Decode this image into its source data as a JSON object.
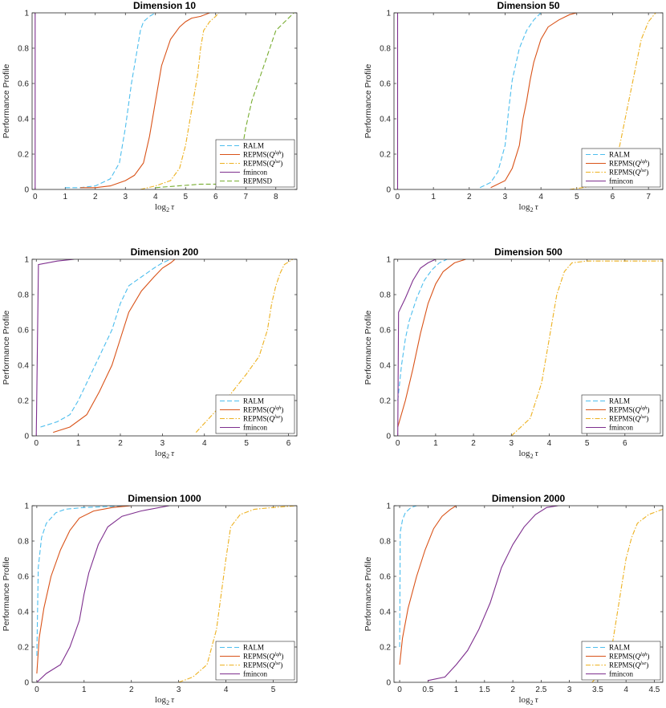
{
  "figure": {
    "ylabel": "Performance Profile",
    "xlabel_base": "log",
    "xlabel_sub": "2",
    "xlabel_var": "τ"
  },
  "series_styles": {
    "RALM": {
      "color": "#4DBEEE",
      "dash": "6,3"
    },
    "REPMS(Qlqh)": {
      "color": "#D95319",
      "dash": ""
    },
    "REPMS(Qlse)": {
      "color": "#EDB120",
      "dash": "6,2,1.5,2"
    },
    "fmincon": {
      "color": "#7E2F8E",
      "dash": ""
    },
    "REPMSD": {
      "color": "#77AC30",
      "dash": "6,3"
    }
  },
  "chart_data": [
    {
      "type": "line",
      "title": "Dimension 10",
      "xlim": [
        -0.1,
        8.7
      ],
      "ylim": [
        0,
        1
      ],
      "xticks": [
        0,
        1,
        2,
        3,
        4,
        5,
        6,
        7,
        8
      ],
      "yticks": [
        0,
        0.2,
        0.4,
        0.6,
        0.8,
        1
      ],
      "ytick_labels": [
        "0",
        "0.2",
        "0.4",
        "0.6",
        "0.8",
        "1"
      ],
      "legend": [
        "RALM",
        "REPMS(Qlqh)",
        "REPMS(Qlse)",
        "fmincon",
        "REPMSD"
      ],
      "series": [
        {
          "name": "RALM",
          "x": [
            1.0,
            1.5,
            2.0,
            2.5,
            2.8,
            3.0,
            3.2,
            3.4,
            3.5,
            3.6,
            3.8,
            4.0
          ],
          "y": [
            0.01,
            0.01,
            0.02,
            0.06,
            0.15,
            0.35,
            0.6,
            0.8,
            0.9,
            0.95,
            0.98,
            1.0
          ]
        },
        {
          "name": "REPMS(Qlqh)",
          "x": [
            1.5,
            2.0,
            2.5,
            3.0,
            3.3,
            3.6,
            3.8,
            4.0,
            4.2,
            4.5,
            4.8,
            5.0,
            5.2,
            5.5,
            5.8
          ],
          "y": [
            0.01,
            0.01,
            0.02,
            0.05,
            0.08,
            0.15,
            0.3,
            0.5,
            0.7,
            0.85,
            0.92,
            0.95,
            0.97,
            0.98,
            1.0
          ]
        },
        {
          "name": "REPMS(Qlse)",
          "x": [
            3.5,
            4.0,
            4.5,
            4.8,
            5.0,
            5.2,
            5.4,
            5.5,
            5.6,
            5.8,
            6.0,
            6.1
          ],
          "y": [
            0.0,
            0.02,
            0.05,
            0.12,
            0.25,
            0.45,
            0.65,
            0.8,
            0.9,
            0.95,
            0.98,
            1.0
          ]
        },
        {
          "name": "fmincon",
          "x": [
            0.0,
            0.0,
            0.0
          ],
          "y": [
            0.0,
            0.5,
            1.0
          ]
        },
        {
          "name": "REPMSD",
          "x": [
            4.0,
            5.5,
            6.5,
            6.8,
            7.0,
            7.2,
            7.5,
            7.8,
            8.0,
            8.3,
            8.6
          ],
          "y": [
            0.01,
            0.03,
            0.03,
            0.15,
            0.35,
            0.5,
            0.65,
            0.8,
            0.9,
            0.95,
            1.0
          ]
        }
      ]
    },
    {
      "type": "line",
      "title": "Dimension 50",
      "xlim": [
        -0.1,
        7.4
      ],
      "ylim": [
        0,
        1
      ],
      "xticks": [
        0,
        1,
        2,
        3,
        4,
        5,
        6,
        7
      ],
      "yticks": [
        0,
        0.2,
        0.4,
        0.6,
        0.8,
        1
      ],
      "ytick_labels": [
        "0",
        "0.2",
        "0.4",
        "0.6",
        "0.8",
        "1"
      ],
      "legend": [
        "RALM",
        "REPMS(Qlqh)",
        "REPMS(Qlse)",
        "fmincon"
      ],
      "series": [
        {
          "name": "RALM",
          "x": [
            2.3,
            2.6,
            2.8,
            3.0,
            3.1,
            3.2,
            3.4,
            3.6,
            3.8,
            4.0
          ],
          "y": [
            0.01,
            0.04,
            0.1,
            0.25,
            0.45,
            0.62,
            0.8,
            0.9,
            0.96,
            1.0
          ]
        },
        {
          "name": "REPMS(Qlqh)",
          "x": [
            2.6,
            3.0,
            3.2,
            3.4,
            3.5,
            3.6,
            3.7,
            3.8,
            4.0,
            4.2,
            4.5,
            4.8,
            5.0
          ],
          "y": [
            0.01,
            0.05,
            0.12,
            0.25,
            0.4,
            0.5,
            0.62,
            0.72,
            0.85,
            0.92,
            0.96,
            0.99,
            1.0
          ]
        },
        {
          "name": "REPMS(Qlse)",
          "x": [
            4.8,
            5.5,
            6.0,
            6.2,
            6.4,
            6.6,
            6.8,
            7.0,
            7.2
          ],
          "y": [
            0.0,
            0.02,
            0.1,
            0.25,
            0.45,
            0.65,
            0.85,
            0.95,
            1.0
          ]
        },
        {
          "name": "fmincon",
          "x": [
            0.0,
            0.0,
            0.0
          ],
          "y": [
            0.0,
            0.5,
            1.0
          ]
        }
      ]
    },
    {
      "type": "line",
      "title": "Dimension 200",
      "xlim": [
        -0.1,
        6.2
      ],
      "ylim": [
        0,
        1
      ],
      "xticks": [
        0,
        1,
        2,
        3,
        4,
        5,
        6
      ],
      "yticks": [
        0,
        0.2,
        0.4,
        0.6,
        0.8,
        1
      ],
      "ytick_labels": [
        "0",
        "0.2",
        "0.4",
        "0.6",
        "0.8",
        "1"
      ],
      "legend": [
        "RALM",
        "REPMS(Qlqh)",
        "REPMS(Qlse)",
        "fmincon"
      ],
      "series": [
        {
          "name": "RALM",
          "x": [
            0.1,
            0.5,
            0.8,
            1.0,
            1.2,
            1.5,
            1.8,
            2.0,
            2.2,
            2.5,
            2.8,
            3.0,
            3.2
          ],
          "y": [
            0.05,
            0.08,
            0.12,
            0.2,
            0.3,
            0.45,
            0.6,
            0.75,
            0.85,
            0.9,
            0.95,
            0.98,
            1.0
          ]
        },
        {
          "name": "REPMS(Qlqh)",
          "x": [
            0.4,
            0.8,
            1.2,
            1.5,
            1.8,
            2.0,
            2.2,
            2.5,
            2.8,
            3.0,
            3.2,
            3.3
          ],
          "y": [
            0.02,
            0.05,
            0.12,
            0.25,
            0.4,
            0.55,
            0.7,
            0.82,
            0.9,
            0.95,
            0.98,
            1.0
          ]
        },
        {
          "name": "REPMS(Qlse)",
          "x": [
            3.8,
            4.5,
            5.0,
            5.3,
            5.5,
            5.6,
            5.7,
            5.8,
            5.9,
            6.1
          ],
          "y": [
            0.02,
            0.2,
            0.35,
            0.45,
            0.6,
            0.75,
            0.85,
            0.92,
            0.97,
            1.0
          ]
        },
        {
          "name": "fmincon",
          "x": [
            0.0,
            0.05,
            0.5,
            0.9
          ],
          "y": [
            0.0,
            0.97,
            0.99,
            1.0
          ]
        }
      ]
    },
    {
      "type": "line",
      "title": "Dimension 500",
      "xlim": [
        -0.1,
        7.0
      ],
      "ylim": [
        0,
        1
      ],
      "xticks": [
        0,
        1,
        2,
        3,
        4,
        5,
        6
      ],
      "yticks": [
        0,
        0.2,
        0.4,
        0.6,
        0.8,
        1
      ],
      "ytick_labels": [
        "0",
        "0.2",
        "0.4",
        "0.6",
        "0.8",
        "1"
      ],
      "legend": [
        "RALM",
        "REPMS(Qlqh)",
        "REPMS(Qlse)",
        "fmincon"
      ],
      "series": [
        {
          "name": "RALM",
          "x": [
            0.0,
            0.1,
            0.2,
            0.3,
            0.5,
            0.7,
            0.9,
            1.1,
            1.3
          ],
          "y": [
            0.2,
            0.4,
            0.55,
            0.65,
            0.78,
            0.88,
            0.94,
            0.98,
            1.0
          ]
        },
        {
          "name": "REPMS(Qlqh)",
          "x": [
            0.0,
            0.2,
            0.4,
            0.6,
            0.8,
            1.0,
            1.2,
            1.5,
            1.8
          ],
          "y": [
            0.05,
            0.2,
            0.38,
            0.58,
            0.75,
            0.86,
            0.93,
            0.98,
            1.0
          ]
        },
        {
          "name": "REPMS(Qlse)",
          "x": [
            3.0,
            3.5,
            3.8,
            4.0,
            4.2,
            4.4,
            4.6,
            5.0,
            6.0,
            7.0
          ],
          "y": [
            0.0,
            0.1,
            0.3,
            0.55,
            0.8,
            0.93,
            0.98,
            0.99,
            0.99,
            0.99
          ]
        },
        {
          "name": "fmincon",
          "x": [
            0.0,
            0.02,
            0.2,
            0.4,
            0.6,
            0.8,
            1.0
          ],
          "y": [
            0.0,
            0.7,
            0.78,
            0.88,
            0.95,
            0.98,
            1.0
          ]
        }
      ]
    },
    {
      "type": "line",
      "title": "Dimension 1000",
      "xlim": [
        -0.1,
        5.5
      ],
      "ylim": [
        0,
        1
      ],
      "xticks": [
        0,
        1,
        2,
        3,
        4,
        5
      ],
      "yticks": [
        0,
        0.2,
        0.4,
        0.6,
        0.8,
        1
      ],
      "ytick_labels": [
        "0",
        "0.2",
        "0.4",
        "0.6",
        "0.8",
        "1"
      ],
      "legend": [
        "RALM",
        "REPMS(Qlqh)",
        "REPMS(Qlse)",
        "fmincon"
      ],
      "series": [
        {
          "name": "RALM",
          "x": [
            0.0,
            0.03,
            0.1,
            0.2,
            0.4,
            0.6,
            1.0,
            2.0
          ],
          "y": [
            0.15,
            0.65,
            0.82,
            0.9,
            0.96,
            0.98,
            0.99,
            1.0
          ]
        },
        {
          "name": "REPMS(Qlqh)",
          "x": [
            0.0,
            0.05,
            0.15,
            0.3,
            0.5,
            0.7,
            0.9,
            1.2,
            1.6,
            2.0
          ],
          "y": [
            0.05,
            0.25,
            0.42,
            0.6,
            0.75,
            0.86,
            0.93,
            0.97,
            0.99,
            1.0
          ]
        },
        {
          "name": "REPMS(Qlse)",
          "x": [
            3.0,
            3.3,
            3.6,
            3.8,
            3.9,
            4.0,
            4.1,
            4.3,
            4.6,
            5.0,
            5.5
          ],
          "y": [
            0.0,
            0.03,
            0.1,
            0.3,
            0.5,
            0.7,
            0.88,
            0.95,
            0.98,
            0.99,
            1.0
          ]
        },
        {
          "name": "fmincon",
          "x": [
            0.0,
            0.2,
            0.5,
            0.7,
            0.9,
            1.0,
            1.1,
            1.3,
            1.5,
            1.8,
            2.2,
            2.8
          ],
          "y": [
            0.0,
            0.05,
            0.1,
            0.2,
            0.35,
            0.5,
            0.62,
            0.78,
            0.88,
            0.94,
            0.97,
            1.0
          ]
        }
      ]
    },
    {
      "type": "line",
      "title": "Dimension 2000",
      "xlim": [
        -0.1,
        4.65
      ],
      "ylim": [
        0,
        1
      ],
      "xticks": [
        0,
        0.5,
        1,
        1.5,
        2,
        2.5,
        3,
        3.5,
        4,
        4.5
      ],
      "xtick_labels": [
        "0",
        "0.5",
        "1",
        "1.5",
        "2",
        "2.5",
        "3",
        "3.5",
        "4",
        "4.5"
      ],
      "yticks": [
        0,
        0.2,
        0.4,
        0.6,
        0.8,
        1
      ],
      "ytick_labels": [
        "0",
        "0.2",
        "0.4",
        "0.6",
        "0.8",
        "1"
      ],
      "legend": [
        "RALM",
        "REPMS(Qlqh)",
        "REPMS(Qlse)",
        "fmincon"
      ],
      "series": [
        {
          "name": "RALM",
          "x": [
            0.0,
            0.01,
            0.05,
            0.1,
            0.2,
            0.3
          ],
          "y": [
            0.2,
            0.85,
            0.92,
            0.96,
            0.99,
            1.0
          ]
        },
        {
          "name": "REPMS(Qlqh)",
          "x": [
            0.0,
            0.05,
            0.15,
            0.3,
            0.45,
            0.6,
            0.75,
            0.9,
            1.0
          ],
          "y": [
            0.1,
            0.25,
            0.42,
            0.6,
            0.75,
            0.87,
            0.94,
            0.98,
            1.0
          ]
        },
        {
          "name": "REPMS(Qlse)",
          "x": [
            3.4,
            3.7,
            3.8,
            3.9,
            4.0,
            4.1,
            4.2,
            4.4,
            4.65
          ],
          "y": [
            0.0,
            0.1,
            0.3,
            0.5,
            0.7,
            0.82,
            0.9,
            0.95,
            0.98
          ]
        },
        {
          "name": "fmincon",
          "x": [
            0.5,
            0.8,
            1.0,
            1.2,
            1.4,
            1.6,
            1.8,
            2.0,
            2.2,
            2.4,
            2.6,
            2.8
          ],
          "y": [
            0.01,
            0.03,
            0.1,
            0.18,
            0.3,
            0.45,
            0.65,
            0.78,
            0.88,
            0.95,
            0.99,
            1.0
          ]
        }
      ]
    }
  ]
}
